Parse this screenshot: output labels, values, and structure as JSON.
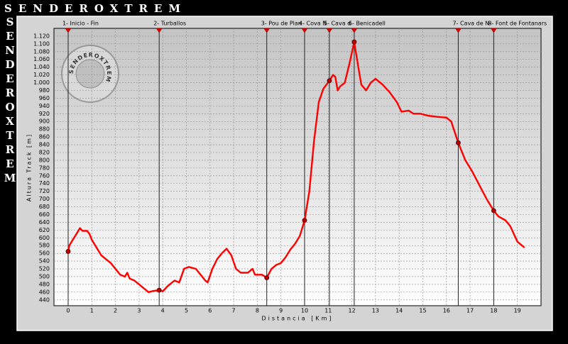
{
  "header": {
    "title": "SENDEROXTREM"
  },
  "chart_data": {
    "type": "line",
    "xlabel": "Distancia [Km]",
    "ylabel": "Altura Track [m]",
    "xlim": [
      -0.6,
      20
    ],
    "ylim": [
      425,
      1140
    ],
    "xticks": [
      0,
      1,
      2,
      3,
      4,
      5,
      6,
      7,
      8,
      9,
      10,
      11,
      12,
      13,
      14,
      15,
      16,
      17,
      18,
      19
    ],
    "yticks": [
      440,
      460,
      480,
      500,
      520,
      540,
      560,
      580,
      600,
      620,
      640,
      660,
      680,
      700,
      720,
      740,
      760,
      780,
      800,
      820,
      840,
      860,
      880,
      900,
      920,
      940,
      960,
      980,
      {
        "value": 1000,
        "label": "1.000"
      },
      {
        "value": 1020,
        "label": "1.020"
      },
      {
        "value": 1040,
        "label": "1.040"
      },
      {
        "value": 1060,
        "label": "1.060"
      },
      {
        "value": 1080,
        "label": "1.080"
      },
      {
        "value": 1100,
        "label": "1.100"
      },
      {
        "value": 1120,
        "label": "1.120"
      }
    ],
    "grid": true,
    "series": [
      {
        "color": "#ff0000",
        "x": [
          0,
          0.05,
          0.2,
          0.4,
          0.5,
          0.6,
          0.8,
          0.9,
          1.0,
          1.2,
          1.4,
          1.6,
          1.8,
          2.0,
          2.2,
          2.4,
          2.5,
          2.6,
          2.8,
          3.0,
          3.2,
          3.4,
          3.6,
          3.85,
          4.0,
          4.2,
          4.5,
          4.7,
          4.9,
          5.1,
          5.4,
          5.6,
          5.8,
          5.9,
          6.1,
          6.3,
          6.5,
          6.7,
          6.9,
          7.1,
          7.3,
          7.6,
          7.8,
          7.9,
          8.2,
          8.4,
          8.6,
          8.8,
          9.0,
          9.2,
          9.4,
          9.6,
          9.8,
          10.0,
          10.2,
          10.4,
          10.6,
          10.8,
          11.05,
          11.2,
          11.3,
          11.4,
          11.5,
          11.7,
          11.9,
          12.1,
          12.3,
          12.4,
          12.6,
          12.8,
          13.0,
          13.3,
          13.6,
          13.9,
          14.1,
          14.4,
          14.6,
          14.9,
          15.2,
          15.6,
          16.0,
          16.2,
          16.5,
          16.8,
          17.1,
          17.4,
          17.7,
          18.0,
          18.2,
          18.5,
          18.7,
          19.0,
          19.3
        ],
        "values": [
          565,
          580,
          595,
          615,
          625,
          618,
          618,
          610,
          595,
          575,
          555,
          545,
          535,
          520,
          505,
          500,
          510,
          495,
          490,
          480,
          470,
          460,
          463,
          465,
          462,
          475,
          490,
          485,
          520,
          525,
          520,
          505,
          490,
          485,
          520,
          545,
          560,
          572,
          555,
          520,
          510,
          510,
          520,
          505,
          505,
          497,
          520,
          530,
          535,
          550,
          570,
          585,
          605,
          645,
          720,
          850,
          950,
          985,
          1005,
          1020,
          1015,
          980,
          990,
          1000,
          1050,
          1105,
          1030,
          995,
          980,
          1000,
          1010,
          995,
          975,
          950,
          925,
          928,
          920,
          920,
          915,
          912,
          910,
          900,
          845,
          800,
          770,
          735,
          700,
          670,
          655,
          645,
          630,
          590,
          575
        ]
      }
    ],
    "waypoints": [
      {
        "name": "1- Inicio - Fin",
        "x": 0,
        "elevation": 565
      },
      {
        "name": "2- Turballos",
        "x": 3.85,
        "elevation": 465
      },
      {
        "name": "3- Pou de Plan",
        "x": 8.4,
        "elevation": 497
      },
      {
        "name": "4- Cova N",
        "x": 10,
        "elevation": 645
      },
      {
        "name": "5- Cava d",
        "x": 11.05,
        "elevation": 1005
      },
      {
        "name": "6- Benicadell",
        "x": 12.1,
        "elevation": 1105
      },
      {
        "name": "7- Cava de N-",
        "x": 16.5,
        "elevation": 845
      },
      {
        "name": "8- Font de Fontanars",
        "x": 18,
        "elevation": 670
      }
    ]
  }
}
